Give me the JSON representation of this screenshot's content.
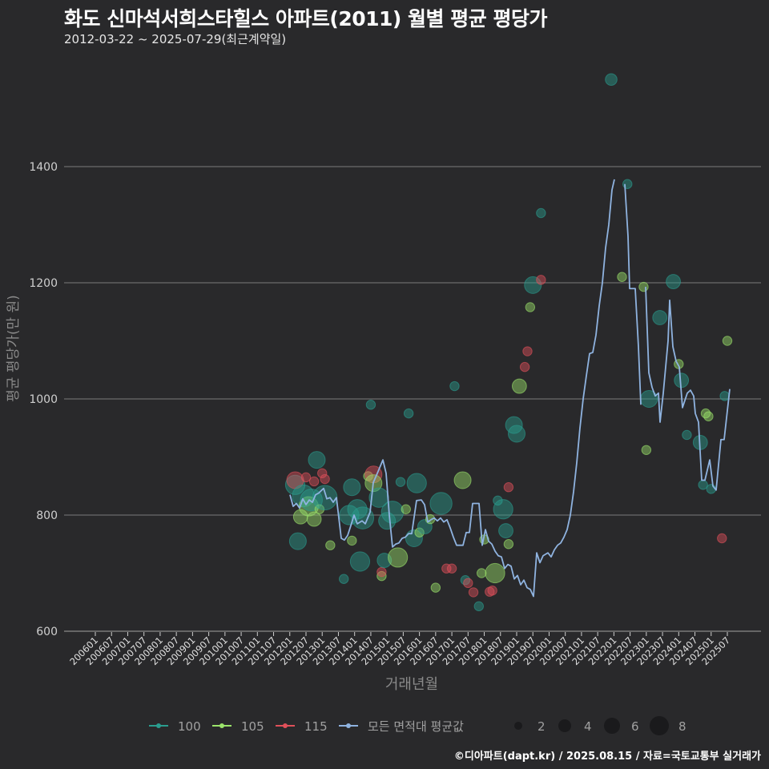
{
  "header": {
    "title": "화도 신마석서희스타힐스 아파트(2011) 월별 평균 평당가",
    "subtitle": "2012-03-22 ~ 2025-07-29(최근계약일)"
  },
  "footer": {
    "credit": "©디아파트(dapt.kr) / 2025.08.15 / 자료=국토교통부 실거래가"
  },
  "colors": {
    "background": "#29292b",
    "grid": "#6b6b6b",
    "avg_line": "#8fb3e0",
    "area_100": "#2a9d8f",
    "area_105": "#9be36b",
    "area_115": "#e0505a"
  },
  "chart_data": {
    "type": "line+scatter",
    "title": "화도 신마석서희스타힐스 아파트(2011) 월별 평균 평당가",
    "subtitle": "2012-03-22 ~ 2025-07-29(최근계약일)",
    "xlabel": "거래년월",
    "ylabel": "평균 평당가(만 원)",
    "ylim": [
      600,
      1550
    ],
    "yticks": [
      600,
      800,
      1000,
      1200,
      1400
    ],
    "xticks": [
      "200601",
      "200607",
      "200701",
      "200707",
      "200801",
      "200807",
      "200901",
      "200907",
      "201001",
      "201007",
      "201101",
      "201107",
      "201201",
      "201207",
      "201301",
      "201307",
      "201401",
      "201407",
      "201501",
      "201507",
      "201601",
      "201607",
      "201701",
      "201707",
      "201801",
      "201807",
      "201901",
      "201907",
      "202001",
      "202007",
      "202101",
      "202107",
      "202201",
      "202207",
      "202301",
      "202307",
      "202401",
      "202407",
      "202501",
      "202507"
    ],
    "grid": "horizontal",
    "legend": {
      "position": "bottom",
      "series": [
        "100",
        "105",
        "115",
        "모든 면적대 평균값"
      ],
      "size_legend": [
        2,
        4,
        6,
        8
      ]
    },
    "avg_line": [
      {
        "x": "201203",
        "y": 835
      },
      {
        "x": "201204",
        "y": 815
      },
      {
        "x": "201205",
        "y": 820
      },
      {
        "x": "201206",
        "y": 812
      },
      {
        "x": "201207",
        "y": 830
      },
      {
        "x": "201208",
        "y": 820
      },
      {
        "x": "201209",
        "y": 828
      },
      {
        "x": "201210",
        "y": 822
      },
      {
        "x": "201211",
        "y": 835
      },
      {
        "x": "201212",
        "y": 838
      },
      {
        "x": "201301",
        "y": 846
      },
      {
        "x": "201302",
        "y": 828
      },
      {
        "x": "201303",
        "y": 830
      },
      {
        "x": "201304",
        "y": 822
      },
      {
        "x": "201305",
        "y": 832
      },
      {
        "x": "201306",
        "y": 760
      },
      {
        "x": "201307",
        "y": 757
      },
      {
        "x": "201308",
        "y": 765
      },
      {
        "x": "201309",
        "y": 780
      },
      {
        "x": "201310",
        "y": 800
      },
      {
        "x": "201311",
        "y": 785
      },
      {
        "x": "201312",
        "y": 790
      },
      {
        "x": "201401",
        "y": 785
      },
      {
        "x": "201402",
        "y": 805
      },
      {
        "x": "201403",
        "y": 856
      },
      {
        "x": "201404",
        "y": 870
      },
      {
        "x": "201405",
        "y": 895
      },
      {
        "x": "201406",
        "y": 870
      },
      {
        "x": "201407",
        "y": 800
      },
      {
        "x": "201408",
        "y": 745
      },
      {
        "x": "201409",
        "y": 752
      },
      {
        "x": "201410",
        "y": 755
      },
      {
        "x": "201411",
        "y": 768
      },
      {
        "x": "201412",
        "y": 762
      },
      {
        "x": "201501",
        "y": 768
      },
      {
        "x": "201502",
        "y": 825
      },
      {
        "x": "201503",
        "y": 826
      },
      {
        "x": "201504",
        "y": 818
      },
      {
        "x": "201505",
        "y": 788
      },
      {
        "x": "201506",
        "y": 792
      },
      {
        "x": "201507",
        "y": 795
      },
      {
        "x": "201508",
        "y": 790
      },
      {
        "x": "201509",
        "y": 795
      },
      {
        "x": "201510",
        "y": 788
      },
      {
        "x": "201511",
        "y": 792
      },
      {
        "x": "201512",
        "y": 778
      },
      {
        "x": "201601",
        "y": 762
      },
      {
        "x": "201602",
        "y": 748
      },
      {
        "x": "201603",
        "y": 748
      },
      {
        "x": "201604",
        "y": 768
      },
      {
        "x": "201605",
        "y": 770
      },
      {
        "x": "201606",
        "y": 818
      },
      {
        "x": "201607",
        "y": 818
      },
      {
        "x": "201608",
        "y": 748
      },
      {
        "x": "201609",
        "y": 775
      },
      {
        "x": "201610",
        "y": 755
      },
      {
        "x": "201611",
        "y": 750
      },
      {
        "x": "201612",
        "y": 738
      },
      {
        "x": "201701",
        "y": 730
      },
      {
        "x": "201702",
        "y": 728
      },
      {
        "x": "201703",
        "y": 708
      },
      {
        "x": "201704",
        "y": 715
      },
      {
        "x": "201705",
        "y": 712
      },
      {
        "x": "201706",
        "y": 690
      },
      {
        "x": "201707",
        "y": 695
      },
      {
        "x": "201708",
        "y": 680
      },
      {
        "x": "201709",
        "y": 688
      },
      {
        "x": "201710",
        "y": 675
      },
      {
        "x": "201711",
        "y": 672
      },
      {
        "x": "201712",
        "y": 660
      },
      {
        "x": "201801",
        "y": 735
      },
      {
        "x": "201802",
        "y": 718
      },
      {
        "x": "201803",
        "y": 730
      },
      {
        "x": "201804",
        "y": 735
      },
      {
        "x": "201805",
        "y": 728
      },
      {
        "x": "201806",
        "y": 740
      },
      {
        "x": "201807",
        "y": 748
      },
      {
        "x": "201808",
        "y": 752
      },
      {
        "x": "201809",
        "y": 762
      },
      {
        "x": "201810",
        "y": 775
      },
      {
        "x": "201811",
        "y": 800
      },
      {
        "x": "201812",
        "y": 840
      },
      {
        "x": "201901",
        "y": 890
      },
      {
        "x": "201902",
        "y": 950
      },
      {
        "x": "201903",
        "y": 1000
      },
      {
        "x": "201904",
        "y": 1040
      },
      {
        "x": "201905",
        "y": 1078
      },
      {
        "x": "201906",
        "y": 1080
      },
      {
        "x": "201907",
        "y": 1110
      },
      {
        "x": "201908",
        "y": 1160
      },
      {
        "x": "201909",
        "y": 1200
      },
      {
        "x": "201910",
        "y": 1260
      },
      {
        "x": "201911",
        "y": 1300
      },
      {
        "x": "201912",
        "y": 1360
      },
      {
        "x": "202001",
        "y": 1378
      }
    ],
    "series": [
      {
        "name": "100",
        "color": "#2a9d8f"
      },
      {
        "name": "105",
        "color": "#9be36b"
      },
      {
        "name": "115",
        "color": "#e0505a"
      },
      {
        "name": "모든 면적대 평균값",
        "color": "#8fb3e0"
      }
    ],
    "notable_points": [
      {
        "series": "100",
        "x": "202112",
        "y": 1550,
        "size": 3
      },
      {
        "series": "100",
        "x": "202206",
        "y": 1370,
        "size": 1
      },
      {
        "series": "100",
        "x": "202401",
        "y": 1202,
        "size": 3
      },
      {
        "series": "105",
        "x": "202507",
        "y": 1100,
        "size": 1
      },
      {
        "series": "115",
        "x": "202505",
        "y": 760,
        "size": 1
      }
    ]
  },
  "axes": {
    "x_label": "거래년월",
    "y_label": "평균 평당가(만 원)",
    "y_ticks": [
      "600",
      "800",
      "1000",
      "1200",
      "1400"
    ]
  },
  "legend": {
    "items": [
      {
        "label": "100"
      },
      {
        "label": "105"
      },
      {
        "label": "115"
      },
      {
        "label": "모든 면적대 평균값"
      }
    ],
    "sizes": [
      {
        "label": "2"
      },
      {
        "label": "4"
      },
      {
        "label": "6"
      },
      {
        "label": "8"
      }
    ]
  }
}
